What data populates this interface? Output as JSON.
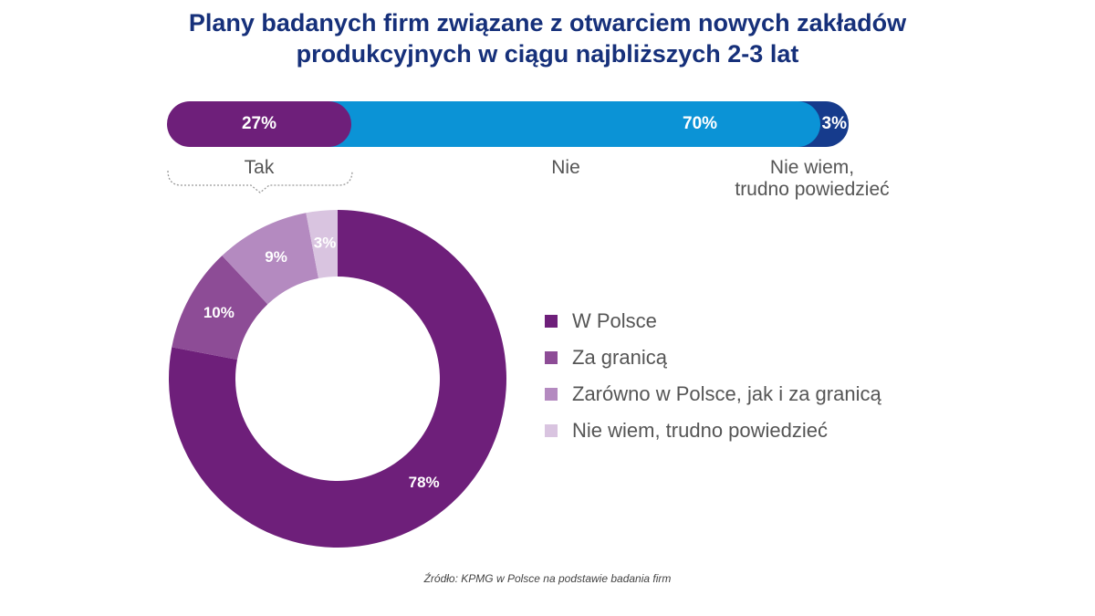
{
  "title": {
    "line1": "Plany badanych firm związane z otwarciem nowych zakładów",
    "line2": "produkcyjnych w ciągu najbliższych 2-3 lat"
  },
  "source": "Źródło: KPMG w Polsce na podstawie badania firm",
  "colors": {
    "title": "#16307a",
    "tak": "#6e1f7a",
    "nie": "#0b93d6",
    "nie_wiem": "#163b8c",
    "w_polsce": "#6e1f7a",
    "za_granica": "#8d4c96",
    "zarowno": "#b48ac0",
    "donut_nie_wiem": "#d9c4e0"
  },
  "chart_data": [
    {
      "type": "bar",
      "orientation": "horizontal-stacked",
      "categories": [
        "Tak",
        "Nie",
        "Nie wiem, trudno powiedzieć"
      ],
      "values": [
        27,
        70,
        3
      ],
      "value_labels": [
        "27%",
        "70%",
        "3%"
      ],
      "category_labels": {
        "tak": "Tak",
        "nie": "Nie",
        "nie_wiem_line1": "Nie wiem,",
        "nie_wiem_line2": "trudno powiedzieć"
      }
    },
    {
      "type": "pie",
      "variant": "donut",
      "categories": [
        "W Polsce",
        "Za granicą",
        "Zarówno w Polsce, jak i za granicą",
        "Nie wiem, trudno powiedzieć"
      ],
      "values": [
        78,
        10,
        9,
        3
      ],
      "value_labels": [
        "78%",
        "10%",
        "9%",
        "3%"
      ],
      "legend": [
        "W Polsce",
        "Za granicą",
        "Zarówno w Polsce, jak i za granicą",
        "Nie wiem, trudno powiedzieć"
      ],
      "legend_position": "right"
    }
  ]
}
